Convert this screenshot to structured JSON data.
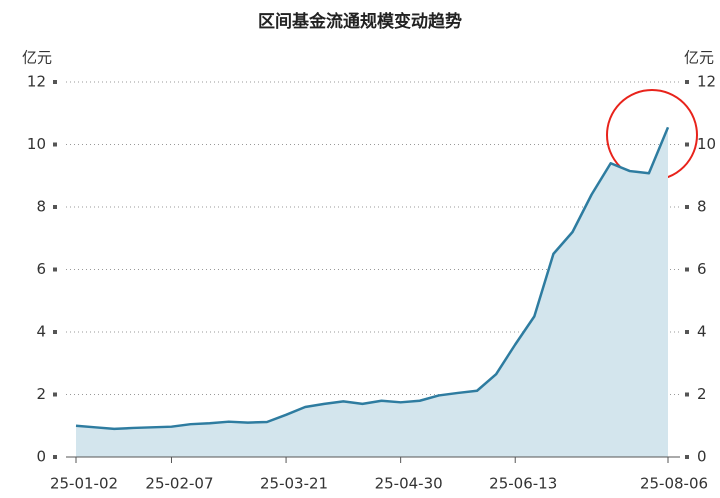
{
  "chart_data": {
    "type": "area",
    "title": "区间基金流通规模变动趋势",
    "y_unit": "亿元",
    "categories": [
      "25-01-02",
      null,
      null,
      null,
      null,
      "25-02-07",
      null,
      null,
      null,
      null,
      null,
      "25-03-21",
      null,
      null,
      null,
      null,
      null,
      "25-04-30",
      null,
      null,
      null,
      null,
      null,
      "25-06-13",
      null,
      null,
      null,
      null,
      null,
      null,
      null,
      "25-08-06"
    ],
    "series": [
      {
        "color": "#2e7ca0",
        "values": [
          1.0,
          0.95,
          0.9,
          0.93,
          0.95,
          0.97,
          1.05,
          1.08,
          1.13,
          1.1,
          1.12,
          1.35,
          1.6,
          1.7,
          1.78,
          1.7,
          1.8,
          1.75,
          1.8,
          1.97,
          2.05,
          2.12,
          2.65,
          3.6,
          4.5,
          6.5,
          7.2,
          8.4,
          9.4,
          9.15,
          9.08,
          10.55
        ]
      }
    ],
    "area_color": "#d3e5ed",
    "ylim": [
      0,
      12
    ],
    "yticks": [
      0,
      2,
      4,
      6,
      8,
      10,
      12
    ],
    "y2lim": [
      0,
      12
    ],
    "y2ticks": [
      0,
      2,
      4,
      6,
      8,
      10,
      12
    ],
    "grid": true
  }
}
